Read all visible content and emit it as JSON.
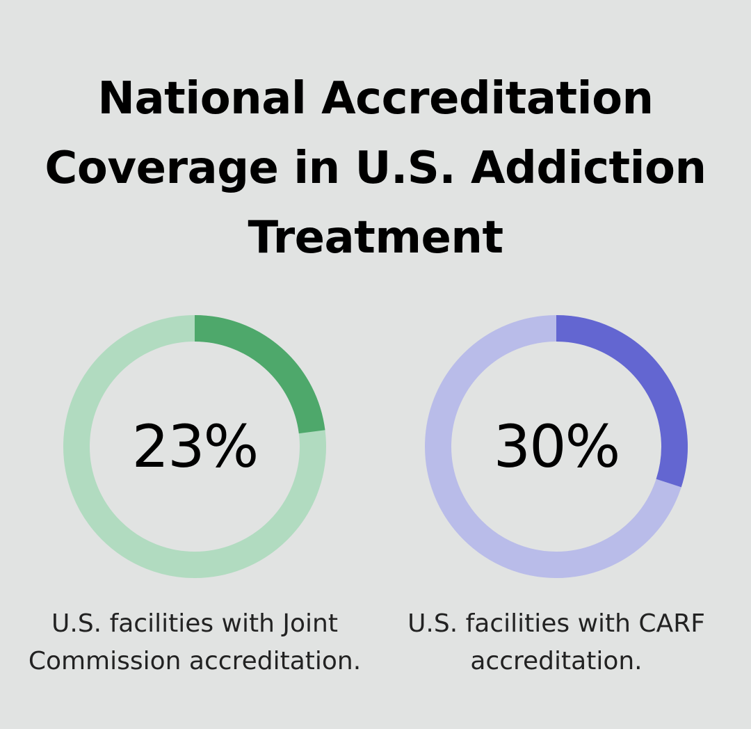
{
  "title_lines": [
    "National Accreditation",
    "Coverage in U.S. Addiction",
    "Treatment"
  ],
  "chart_data": [
    {
      "type": "pie",
      "value": 23,
      "label": "23%",
      "caption": "U.S. facilities with Joint Commission accreditation.",
      "color_fill": "#4ea86b",
      "color_track": "#b1dbc0"
    },
    {
      "type": "pie",
      "value": 30,
      "label": "30%",
      "caption": "U.S. facilities with CARF accreditation.",
      "color_fill": "#6366d1",
      "color_track": "#b9bce9"
    }
  ]
}
